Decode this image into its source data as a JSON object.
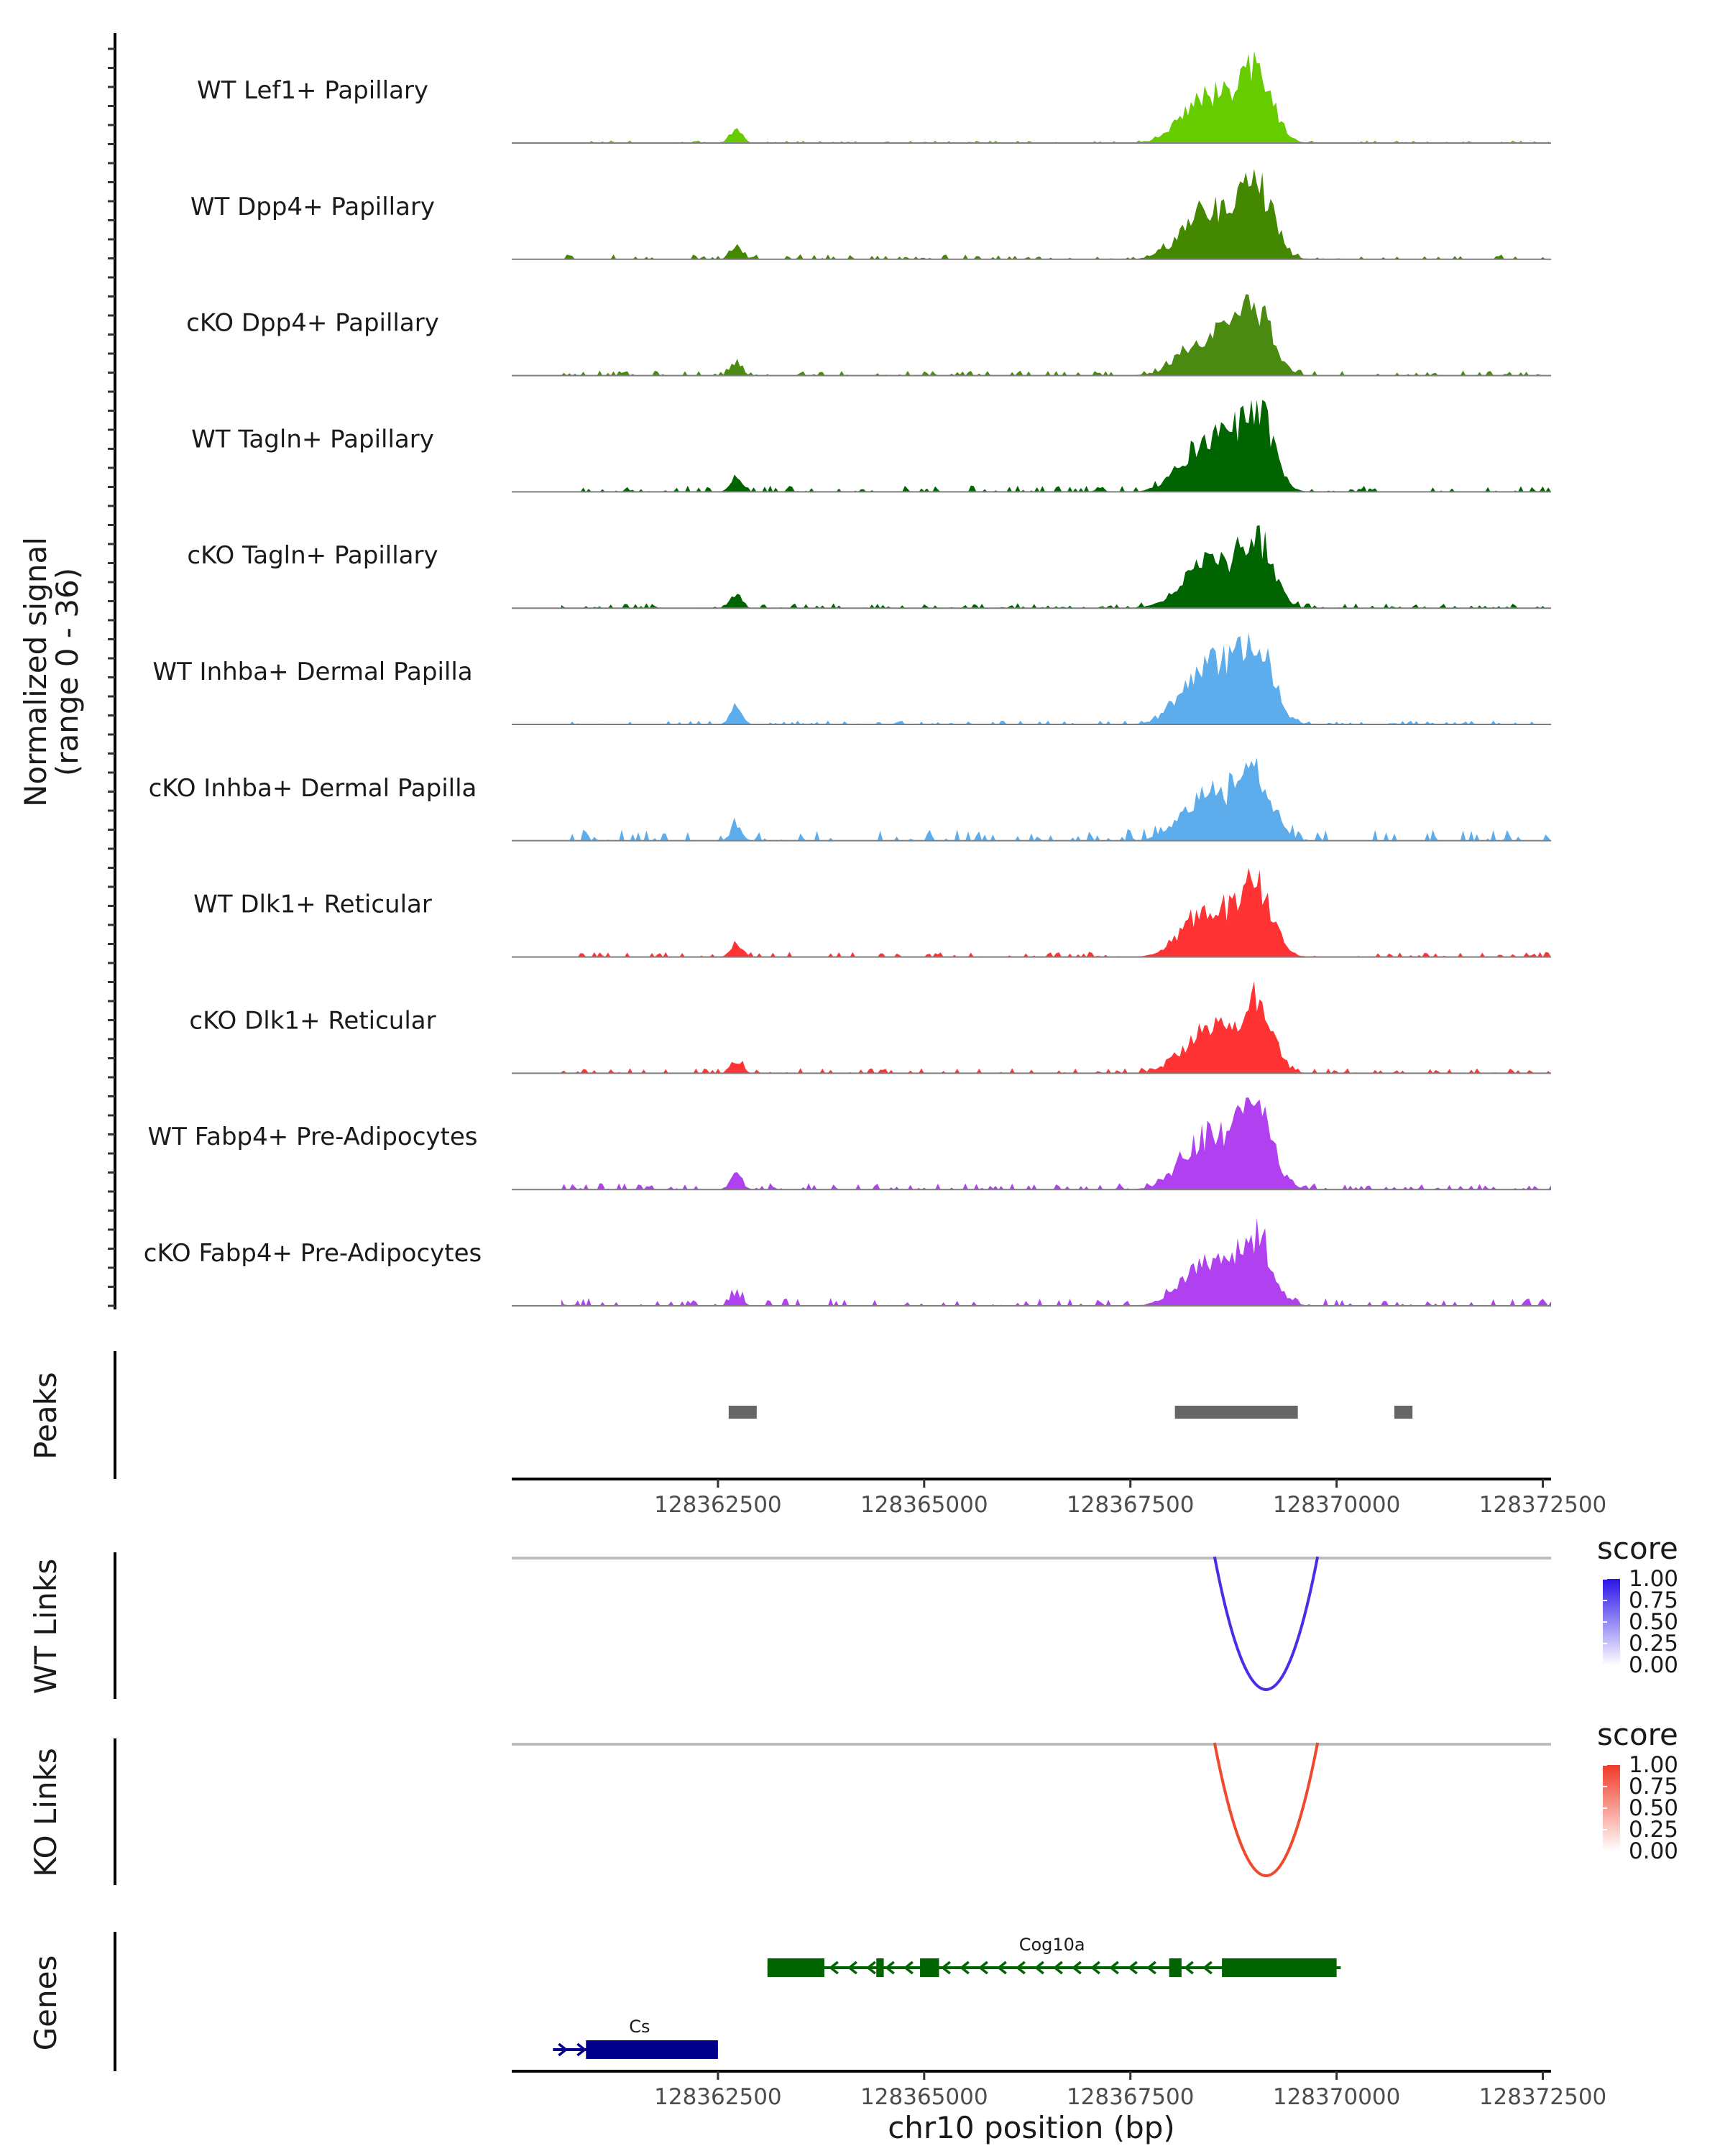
{
  "chart_data": {
    "type": "area",
    "title": "",
    "coverage": {
      "ylabel": [
        "Normalized signal",
        "(range 0 - 36)"
      ],
      "ymax": 36,
      "xlim": [
        128360000,
        128372500
      ],
      "tracks": [
        {
          "name": "WT Lef1+ Papillary",
          "color": "#66CC00",
          "peak_max": 30,
          "background": 1.0,
          "seed": 11
        },
        {
          "name": "WT Dpp4+ Papillary",
          "color": "#448800",
          "peak_max": 30,
          "background": 2.0,
          "seed": 23
        },
        {
          "name": "cKO Dpp4+ Papillary",
          "color": "#4A8A10",
          "peak_max": 26,
          "background": 2.0,
          "seed": 37
        },
        {
          "name": "WT Tagln+ Papillary",
          "color": "#006400",
          "peak_max": 33,
          "background": 2.5,
          "seed": 41
        },
        {
          "name": "cKO Tagln+ Papillary",
          "color": "#006400",
          "peak_max": 28,
          "background": 2.0,
          "seed": 53
        },
        {
          "name": "WT Inhba+ Dermal Papilla",
          "color": "#5DADEC",
          "peak_max": 36,
          "background": 1.5,
          "seed": 67
        },
        {
          "name": "cKO Inhba+ Dermal Papilla",
          "color": "#5DADEC",
          "peak_max": 27,
          "background": 4.5,
          "seed": 71
        },
        {
          "name": "WT Dlk1+ Reticular",
          "color": "#FF3333",
          "peak_max": 28,
          "background": 2.0,
          "seed": 83
        },
        {
          "name": "cKO Dlk1+ Reticular",
          "color": "#FF3333",
          "peak_max": 27,
          "background": 2.0,
          "seed": 97
        },
        {
          "name": "WT Fabp4+ Pre-Adipocytes",
          "color": "#B040F0",
          "peak_max": 33,
          "background": 2.5,
          "seed": 101
        },
        {
          "name": "cKO Fabp4+ Pre-Adipocytes",
          "color": "#B040F0",
          "peak_max": 26,
          "background": 3.0,
          "seed": 113
        }
      ]
    },
    "peaks": {
      "label": "Peaks",
      "color": "#666666",
      "regions": [
        [
          128362630,
          128362970
        ],
        [
          128368040,
          128369530
        ],
        [
          128370700,
          128370920
        ]
      ]
    },
    "x_axis": {
      "ticks": [
        128362500,
        128365000,
        128367500,
        128370000,
        128372500
      ],
      "tick_labels": [
        "128362500",
        "128365000",
        "128367500",
        "128370000",
        "128372500"
      ],
      "xlabel": "chr10 position (bp)"
    },
    "links": [
      {
        "label": "WT Links",
        "from": 128368520,
        "to": 128369770,
        "score": 1.0,
        "color": "#4A2EE6",
        "legend": {
          "title": "score",
          "ticks": [
            "1.00",
            "0.75",
            "0.50",
            "0.25",
            "0.00"
          ],
          "high": "#2A14E6",
          "low": "#FFFFFF"
        }
      },
      {
        "label": "KO Links",
        "from": 128368520,
        "to": 128369770,
        "score": 1.0,
        "color": "#F04A2E",
        "legend": {
          "title": "score",
          "ticks": [
            "1.00",
            "0.75",
            "0.50",
            "0.25",
            "0.00"
          ],
          "high": "#F03A28",
          "low": "#FFFFFF"
        }
      }
    ],
    "genes": {
      "label": "Genes",
      "items": [
        {
          "name": "Cs",
          "color": "#00008B",
          "start": 128360500,
          "end": 128362500,
          "strand": "+",
          "exons": [
            [
              128360900,
              128362500
            ]
          ],
          "label_pos": 128361550
        },
        {
          "name": "Cog10a",
          "color": "#006400",
          "start": 128363100,
          "end": 128370050,
          "strand": "-",
          "exons": [
            [
              128363100,
              128363790
            ],
            [
              128364420,
              128364510
            ],
            [
              128364950,
              128365180
            ],
            [
              128367970,
              128368120
            ],
            [
              128368610,
              128370000
            ]
          ],
          "label_pos": 128366550
        }
      ]
    }
  }
}
